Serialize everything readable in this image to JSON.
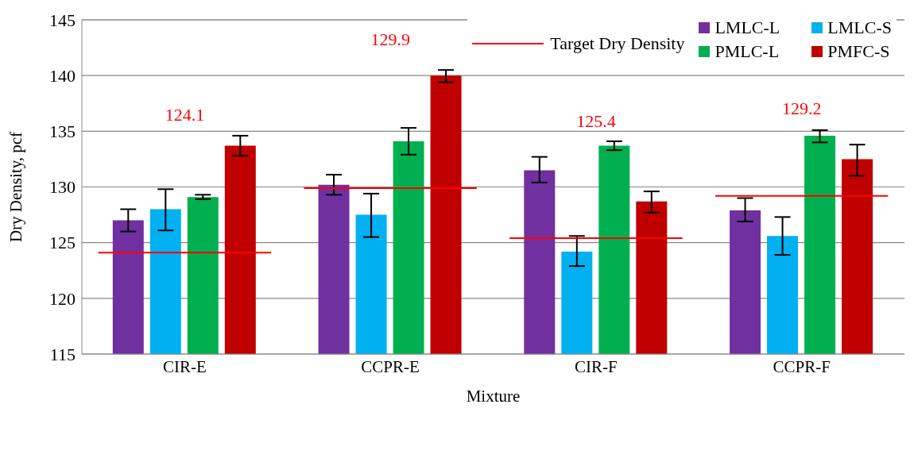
{
  "chart_data": {
    "type": "bar",
    "xlabel": "Mixture",
    "ylabel": "Dry Density, pcf",
    "categories": [
      "CIR-E",
      "CCPR-E",
      "CIR-F",
      "CCPR-F"
    ],
    "series": [
      {
        "name": "LMLC-L",
        "color": "#7030a0",
        "values": [
          127.0,
          130.2,
          131.5,
          127.9
        ],
        "errors": [
          [
            126.0,
            128.0
          ],
          [
            129.3,
            131.1
          ],
          [
            130.4,
            132.7
          ],
          [
            126.9,
            129.0
          ]
        ]
      },
      {
        "name": "LMLC-S",
        "color": "#00b0f0",
        "values": [
          128.0,
          127.5,
          124.2,
          125.6
        ],
        "errors": [
          [
            126.1,
            129.8
          ],
          [
            125.5,
            129.4
          ],
          [
            122.9,
            125.6
          ],
          [
            123.9,
            127.3
          ]
        ]
      },
      {
        "name": "PMLC-L",
        "color": "#00b050",
        "values": [
          129.1,
          134.1,
          133.7,
          134.6
        ],
        "errors": [
          [
            128.9,
            129.3
          ],
          [
            132.9,
            135.3
          ],
          [
            133.3,
            134.1
          ],
          [
            134.0,
            135.1
          ]
        ]
      },
      {
        "name": "PMFC-S",
        "color": "#c00000",
        "values": [
          133.7,
          140.0,
          128.7,
          132.5
        ],
        "errors": [
          [
            132.8,
            134.6
          ],
          [
            139.4,
            140.5
          ],
          [
            127.7,
            129.6
          ],
          [
            131.0,
            133.8
          ]
        ]
      }
    ],
    "ref_lines": [
      {
        "axis": "y",
        "value": 124.1,
        "label": "124.1",
        "color": "#ff0000"
      },
      {
        "axis": "y",
        "value": 129.9,
        "label": "129.9",
        "color": "#ff0000"
      },
      {
        "axis": "y",
        "value": 125.4,
        "label": "125.4",
        "color": "#ff0000"
      },
      {
        "axis": "y",
        "value": 129.2,
        "label": "129.2",
        "color": "#ff0000"
      }
    ],
    "annotations": [
      "Target Dry Density"
    ],
    "ylim": [
      115,
      145
    ],
    "yticks": [
      115,
      120,
      125,
      130,
      135,
      140,
      145
    ],
    "grid": "y",
    "legend": "top right"
  }
}
